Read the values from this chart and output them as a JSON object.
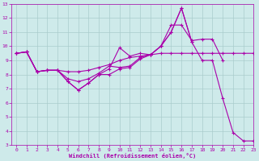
{
  "background_color": "#ceeaea",
  "grid_color": "#aacccc",
  "line_color": "#aa00aa",
  "xlabel": "Windchill (Refroidissement éolien,°C)",
  "ylim": [
    3,
    13
  ],
  "xlim": [
    -0.5,
    23
  ],
  "yticks": [
    3,
    4,
    5,
    6,
    7,
    8,
    9,
    10,
    11,
    12,
    13
  ],
  "xticks": [
    0,
    1,
    2,
    3,
    4,
    5,
    6,
    7,
    8,
    9,
    10,
    11,
    12,
    13,
    14,
    15,
    16,
    17,
    18,
    19,
    20,
    21,
    22,
    23
  ],
  "line1_x": [
    0,
    1,
    2,
    3,
    4,
    5,
    6,
    7,
    8,
    9,
    10,
    11,
    12,
    13,
    14,
    15,
    16,
    17,
    18,
    19,
    20,
    21,
    22,
    23
  ],
  "line1_y": [
    9.5,
    9.6,
    8.2,
    8.3,
    8.3,
    8.2,
    8.2,
    8.3,
    8.5,
    8.7,
    9.0,
    9.2,
    9.3,
    9.4,
    9.5,
    9.5,
    9.5,
    9.5,
    9.5,
    9.5,
    9.5,
    9.5,
    9.5,
    9.5
  ],
  "line2_x": [
    0,
    1,
    2,
    3,
    4,
    5,
    6,
    7,
    8,
    9,
    10,
    11,
    12,
    13,
    14,
    15,
    16,
    17,
    18,
    19,
    20
  ],
  "line2_y": [
    9.5,
    9.6,
    8.2,
    8.3,
    8.3,
    7.7,
    7.5,
    7.7,
    8.1,
    8.6,
    8.5,
    8.6,
    9.2,
    9.4,
    10.0,
    11.5,
    11.5,
    10.4,
    10.5,
    10.5,
    9.0
  ],
  "line3_x": [
    0,
    1,
    2,
    3,
    4,
    5,
    6,
    7,
    8,
    9,
    10,
    11,
    12,
    13,
    14,
    15,
    16,
    17
  ],
  "line3_y": [
    9.5,
    9.6,
    8.2,
    8.3,
    8.3,
    7.5,
    6.9,
    7.4,
    8.0,
    8.4,
    9.9,
    9.3,
    9.5,
    9.4,
    10.0,
    11.0,
    12.7,
    10.3
  ],
  "line4_x": [
    0,
    1,
    2,
    3,
    4,
    5,
    6,
    7,
    8,
    9,
    10,
    11,
    12,
    13,
    14,
    15,
    16,
    17,
    18,
    19,
    20,
    21,
    22,
    23
  ],
  "line4_y": [
    9.5,
    9.6,
    8.2,
    8.3,
    8.3,
    7.5,
    6.9,
    7.4,
    8.0,
    8.0,
    8.4,
    8.5,
    9.1,
    9.4,
    10.0,
    11.0,
    12.7,
    10.3,
    9.0,
    9.0,
    6.3,
    3.9,
    3.3,
    3.3
  ]
}
